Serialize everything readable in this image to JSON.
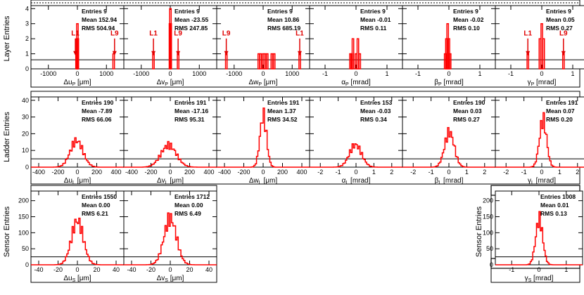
{
  "row_titles": [
    "Layer Entries",
    "Ladder Entries",
    "Sensor Entries",
    "Sensor Entries"
  ],
  "stat_labels": {
    "entries": "Entries",
    "mean": "Mean",
    "rms": "RMS"
  },
  "colors": {
    "histogram": "#ff0000",
    "marker": "#e00000",
    "frame": "#000000"
  },
  "chart_data": [
    {
      "type": "bar",
      "xlabel": "Δu_P [μm]",
      "xlim": [
        -1600,
        1600
      ],
      "xticks": [
        -1000,
        0,
        1000
      ],
      "ylim": [
        0,
        4.2
      ],
      "yticks": [
        0,
        1,
        2,
        3,
        4
      ],
      "stats": {
        "entries": "9",
        "mean": "152.94",
        "rms": "504.94"
      },
      "bins": [
        [
          -30,
          1
        ],
        [
          -15,
          2
        ],
        [
          0,
          3
        ],
        [
          15,
          2
        ],
        [
          1250,
          1
        ]
      ],
      "markers": [
        {
          "label": "L1",
          "x": -70
        },
        {
          "label": "L9",
          "x": 1280
        }
      ],
      "refline": 0.6
    },
    {
      "type": "bar",
      "xlabel": "Δv_P [μm]",
      "xlim": [
        -1600,
        1600
      ],
      "xticks": [
        -1000,
        0,
        1000
      ],
      "ylim": [
        0,
        4.2
      ],
      "yticks": [
        0,
        1,
        2,
        3,
        4
      ],
      "stats": {
        "entries": "9",
        "mean": "-23.55",
        "rms": "247.85"
      },
      "bins": [
        [
          -580,
          1
        ],
        [
          -10,
          3
        ],
        [
          5,
          4
        ],
        [
          15,
          3
        ],
        [
          270,
          1
        ]
      ],
      "markers": [
        {
          "label": "L1",
          "x": -580
        },
        {
          "label": "L9",
          "x": 270
        }
      ],
      "refline": 0.6
    },
    {
      "type": "bar",
      "xlabel": "Δw_P [μm]",
      "xlim": [
        -1600,
        1600
      ],
      "xticks": [
        -1000,
        0,
        1000
      ],
      "ylim": [
        0,
        4.2
      ],
      "yticks": [
        0,
        1,
        2,
        3,
        4
      ],
      "stats": {
        "entries": "9",
        "mean": "10.86",
        "rms": "685.19"
      },
      "bins": [
        [
          -1270,
          1
        ],
        [
          -150,
          1
        ],
        [
          -90,
          1
        ],
        [
          0,
          1
        ],
        [
          60,
          1
        ],
        [
          140,
          1
        ],
        [
          300,
          1
        ],
        [
          380,
          1
        ],
        [
          1260,
          1
        ]
      ],
      "markers": [
        {
          "label": "L9",
          "x": -1270
        },
        {
          "label": "L1",
          "x": 1260
        }
      ],
      "refline": 0.6
    },
    {
      "type": "bar",
      "xlabel": "α_P [mrad]",
      "xlim": [
        -1.5,
        1.5
      ],
      "xticks": [
        -1,
        0,
        1
      ],
      "ylim": [
        0,
        4.2
      ],
      "yticks": [
        0,
        1,
        2,
        3,
        4
      ],
      "stats": {
        "entries": "9",
        "mean": "-0.01",
        "rms": "0.11"
      },
      "bins": [
        [
          -0.18,
          1
        ],
        [
          -0.14,
          1
        ],
        [
          -0.1,
          2
        ],
        [
          0.0,
          1
        ],
        [
          0.06,
          2
        ],
        [
          0.12,
          1
        ]
      ],
      "markers": [],
      "refline": 0.6
    },
    {
      "type": "bar",
      "xlabel": "β_P [mrad]",
      "xlim": [
        -1.5,
        1.5
      ],
      "xticks": [
        -1,
        0,
        1
      ],
      "ylim": [
        0,
        4.2
      ],
      "yticks": [
        0,
        1,
        2,
        3,
        4
      ],
      "stats": {
        "entries": "9",
        "mean": "-0.02",
        "rms": "0.10"
      },
      "bins": [
        [
          -0.12,
          1
        ],
        [
          -0.08,
          2
        ],
        [
          -0.04,
          3
        ],
        [
          0.0,
          2
        ],
        [
          0.04,
          1
        ]
      ],
      "markers": [],
      "refline": 0.6
    },
    {
      "type": "bar",
      "xlabel": "γ_P [mrad]",
      "xlim": [
        -1.5,
        1.5
      ],
      "xticks": [
        -1,
        0,
        1
      ],
      "ylim": [
        0,
        4.2
      ],
      "yticks": [
        0,
        1,
        2,
        3,
        4
      ],
      "stats": {
        "entries": "9",
        "mean": "0.05",
        "rms": "0.27"
      },
      "bins": [
        [
          -0.45,
          1
        ],
        [
          -0.06,
          2
        ],
        [
          0.0,
          3
        ],
        [
          0.06,
          2
        ],
        [
          0.7,
          1
        ]
      ],
      "markers": [
        {
          "label": "L1",
          "x": -0.45
        },
        {
          "label": "L9",
          "x": 0.7
        }
      ],
      "refline": 0.6
    },
    {
      "type": "bar",
      "xlabel": "Δu_L [μm]",
      "xlim": [
        -480,
        480
      ],
      "xticks": [
        -400,
        -200,
        0,
        200,
        400
      ],
      "ylim": [
        0,
        42
      ],
      "yticks": [
        0,
        10,
        20,
        30,
        40
      ],
      "stats": {
        "entries": "190",
        "mean": "-7.89",
        "rms": "66.06"
      },
      "gauss": {
        "mu": -8,
        "sigma": 66,
        "total": 190
      },
      "refline": 5
    },
    {
      "type": "bar",
      "xlabel": "Δv_L [μm]",
      "xlim": [
        -480,
        480
      ],
      "xticks": [
        -400,
        -200,
        0,
        200,
        400
      ],
      "ylim": [
        0,
        42
      ],
      "yticks": [
        0,
        10,
        20,
        30,
        40
      ],
      "stats": {
        "entries": "191",
        "mean": "-17.16",
        "rms": "95.31"
      },
      "gauss": {
        "mu": -17,
        "sigma": 80,
        "total": 191
      },
      "refline": 5
    },
    {
      "type": "bar",
      "xlabel": "Δw_L [μm]",
      "xlim": [
        -480,
        480
      ],
      "xticks": [
        -400,
        -200,
        0,
        200,
        400
      ],
      "ylim": [
        0,
        42
      ],
      "yticks": [
        0,
        10,
        20,
        30,
        40
      ],
      "stats": {
        "entries": "191",
        "mean": "1.37",
        "rms": "34.52"
      },
      "gauss": {
        "mu": 1,
        "sigma": 34,
        "total": 191
      },
      "refline": 5
    },
    {
      "type": "bar",
      "xlabel": "α_L [mrad]",
      "xlim": [
        -2.6,
        2.6
      ],
      "xticks": [
        -2,
        -1,
        0,
        1,
        2
      ],
      "ylim": [
        0,
        42
      ],
      "yticks": [
        0,
        10,
        20,
        30,
        40
      ],
      "stats": {
        "entries": "153",
        "mean": "-0.03",
        "rms": "0.34"
      },
      "gauss": {
        "mu": -0.03,
        "sigma": 0.34,
        "total": 153
      },
      "refline": 5
    },
    {
      "type": "bar",
      "xlabel": "β_L [mrad]",
      "xlim": [
        -2.6,
        2.6
      ],
      "xticks": [
        -2,
        -1,
        0,
        1,
        2
      ],
      "ylim": [
        0,
        42
      ],
      "yticks": [
        0,
        10,
        20,
        30,
        40
      ],
      "stats": {
        "entries": "190",
        "mean": "0.03",
        "rms": "0.27"
      },
      "gauss": {
        "mu": 0.03,
        "sigma": 0.27,
        "total": 190
      },
      "refline": 5
    },
    {
      "type": "bar",
      "xlabel": "γ_L [mrad]",
      "xlim": [
        -2.6,
        2.6
      ],
      "xticks": [
        -2,
        -1,
        0,
        1,
        2
      ],
      "ylim": [
        0,
        42
      ],
      "yticks": [
        0,
        10,
        20,
        30,
        40
      ],
      "stats": {
        "entries": "191",
        "mean": "0.07",
        "rms": "0.20"
      },
      "gauss": {
        "mu": 0.07,
        "sigma": 0.2,
        "total": 191
      },
      "refline": 5
    },
    {
      "type": "bar",
      "xlabel": "Δu_S [μm]",
      "xlim": [
        -48,
        48
      ],
      "xticks": [
        -40,
        -20,
        0,
        20,
        40
      ],
      "ylim": [
        0,
        230
      ],
      "yticks": [
        0,
        50,
        100,
        150,
        200
      ],
      "stats": {
        "entries": "1550",
        "mean": "0.00",
        "rms": "6.21"
      },
      "gauss": {
        "mu": 0,
        "sigma": 6.2,
        "total": 1550
      },
      "refline": 25
    },
    {
      "type": "bar",
      "xlabel": "Δv_S [μm]",
      "xlim": [
        -48,
        48
      ],
      "xticks": [
        -40,
        -20,
        0,
        20,
        40
      ],
      "ylim": [
        0,
        230
      ],
      "yticks": [
        0,
        50,
        100,
        150,
        200
      ],
      "stats": {
        "entries": "1712",
        "mean": "0.00",
        "rms": "6.49"
      },
      "gauss": {
        "mu": 0,
        "sigma": 6.5,
        "total": 1712
      },
      "refline": 25
    },
    {
      "type": "bar",
      "xlabel": "γ_S [mrad]",
      "xlim": [
        -1.6,
        1.6
      ],
      "xticks": [
        -1,
        0,
        1
      ],
      "ylim": [
        0,
        230
      ],
      "yticks": [
        0,
        50,
        100,
        150,
        200
      ],
      "stats": {
        "entries": "1008",
        "mean": "0.01",
        "rms": "0.13"
      },
      "gauss": {
        "mu": 0.01,
        "sigma": 0.13,
        "total": 1008
      },
      "refline": 25
    }
  ]
}
